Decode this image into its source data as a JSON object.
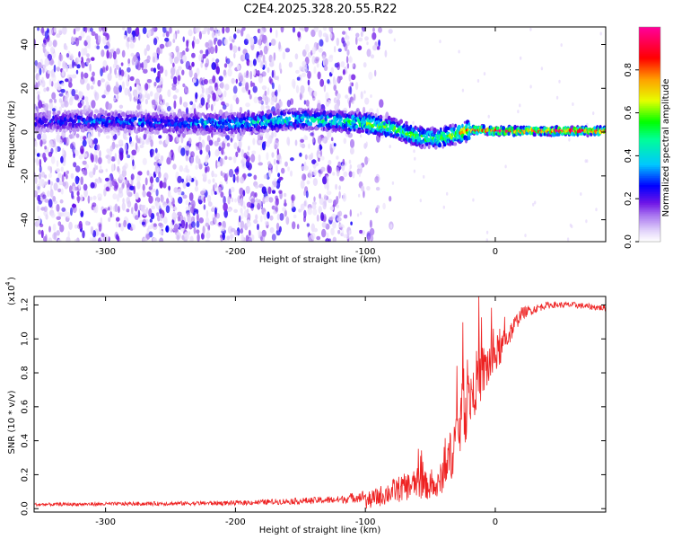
{
  "title": "C2E4.2025.328.20.55.R22",
  "chart_data": [
    {
      "type": "heatmap",
      "xlabel": "Height of straight line (km)",
      "ylabel": "Frequency (Hz)",
      "xlim": [
        -355,
        85
      ],
      "ylim": [
        -50,
        48
      ],
      "xticks": [
        -300,
        -200,
        -100,
        0
      ],
      "yticks": [
        -40,
        -20,
        0,
        20,
        40
      ],
      "colorbar": {
        "label": "Normalized spectral amplitude",
        "range": [
          0,
          1
        ],
        "ticks": [
          0.0,
          0.2,
          0.4,
          0.6,
          0.8
        ],
        "colormap": [
          "#ffffff",
          "#d8c8f8",
          "#8a2be2",
          "#0000ff",
          "#00ffff",
          "#00ff00",
          "#ffff00",
          "#ff8800",
          "#ff0000",
          "#ff00aa"
        ]
      },
      "ridge": {
        "x": [
          -355,
          -300,
          -250,
          -200,
          -150,
          -120,
          -100,
          -80,
          -60,
          -45,
          -30,
          -20,
          -10,
          0,
          85
        ],
        "y": [
          5,
          5,
          4,
          4,
          6,
          5,
          4,
          2,
          -2,
          -3,
          -1,
          1,
          1,
          0.5,
          0.5
        ],
        "peak": [
          0.3,
          0.35,
          0.35,
          0.45,
          0.5,
          0.55,
          0.6,
          0.65,
          0.6,
          0.6,
          0.7,
          0.85,
          0.95,
          1.0,
          1.0
        ]
      },
      "noise_extent_x": [
        -355,
        -110
      ]
    },
    {
      "type": "line",
      "xlabel": "Height of straight line (km)",
      "ylabel": "SNR (10 * v/v)",
      "y_multiplier": "(x10",
      "y_multiplier_exp": "4",
      "xlim": [
        -355,
        85
      ],
      "ylim": [
        -0.02,
        1.25
      ],
      "xticks": [
        -300,
        -200,
        -100,
        0
      ],
      "yticks": [
        0.0,
        0.2,
        0.4,
        0.6,
        0.8,
        1.0,
        1.2
      ],
      "line_color": "#ee2222",
      "envelope": {
        "x": [
          -355,
          -200,
          -120,
          -100,
          -80,
          -60,
          -45,
          -35,
          -25,
          -15,
          -5,
          5,
          20,
          40,
          60,
          85
        ],
        "y": [
          0.015,
          0.02,
          0.03,
          0.04,
          0.1,
          0.15,
          0.12,
          0.3,
          0.55,
          0.75,
          0.85,
          0.95,
          1.15,
          1.2,
          1.2,
          1.18
        ],
        "noise": [
          0.02,
          0.03,
          0.05,
          0.08,
          0.12,
          0.15,
          0.12,
          0.25,
          0.35,
          0.3,
          0.25,
          0.15,
          0.06,
          0.03,
          0.03,
          0.03
        ]
      }
    }
  ]
}
